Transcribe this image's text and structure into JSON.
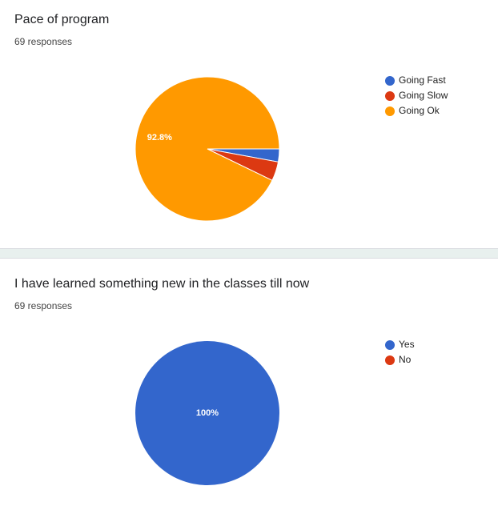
{
  "chart_data": [
    {
      "type": "pie",
      "title": "Pace of program",
      "subtitle": "69 responses",
      "categories": [
        "Going Fast",
        "Going Slow",
        "Going Ok"
      ],
      "values": [
        2.9,
        4.3,
        92.8
      ],
      "value_labels": [
        null,
        null,
        "92.8%"
      ],
      "colors": [
        "#3366cc",
        "#dc3912",
        "#ff9900"
      ]
    },
    {
      "type": "pie",
      "title": "I have learned something new in the classes till now",
      "subtitle": "69 responses",
      "categories": [
        "Yes",
        "No"
      ],
      "values": [
        100,
        0
      ],
      "value_labels": [
        "100%",
        null
      ],
      "colors": [
        "#3366cc",
        "#dc3912"
      ]
    }
  ]
}
